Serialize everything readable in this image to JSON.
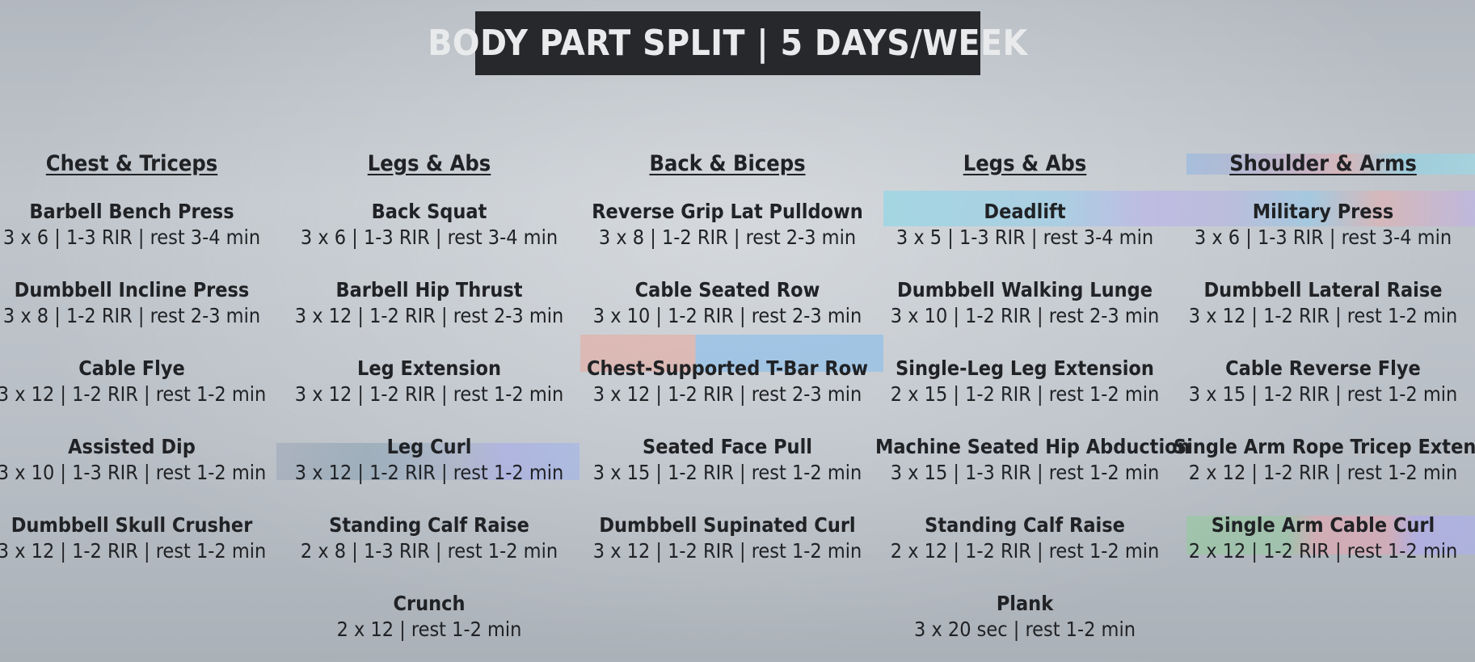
{
  "title": "BODY PART SPLIT | 5 DAYS/WEEK",
  "columns": [
    {
      "header": "Chest & Triceps",
      "exercises": [
        {
          "name": "Barbell Bench Press",
          "detail": "3 x 6 | 1-3 RIR | rest 3-4 min"
        },
        {
          "name": "Dumbbell Incline Press",
          "detail": "3 x 8 | 1-2 RIR | rest 2-3 min"
        },
        {
          "name": "Cable Flye",
          "detail": "3 x 12 | 1-2 RIR | rest 1-2 min"
        },
        {
          "name": "Assisted Dip",
          "detail": "3 x 10 | 1-3 RIR | rest 1-2 min"
        },
        {
          "name": "Dumbbell Skull Crusher",
          "detail": "3 x 12 | 1-2 RIR | rest 1-2 min"
        }
      ]
    },
    {
      "header": "Legs & Abs",
      "exercises": [
        {
          "name": "Back Squat",
          "detail": "3 x 6 | 1-3 RIR | rest 3-4 min"
        },
        {
          "name": "Barbell Hip Thrust",
          "detail": "3 x 12 | 1-2 RIR | rest 2-3 min"
        },
        {
          "name": "Leg Extension",
          "detail": "3 x 12 | 1-2 RIR | rest 1-2 min"
        },
        {
          "name": "Leg Curl",
          "detail": "3 x 12 | 1-2 RIR | rest 1-2 min"
        },
        {
          "name": "Standing Calf Raise",
          "detail": "2 x 8 | 1-3 RIR | rest 1-2 min"
        },
        {
          "name": "Crunch",
          "detail": "2 x 12 | rest 1-2 min"
        }
      ]
    },
    {
      "header": "Back & Biceps",
      "exercises": [
        {
          "name": "Reverse Grip Lat Pulldown",
          "detail": "3 x 8 | 1-2 RIR | rest 2-3 min"
        },
        {
          "name": "Cable Seated Row",
          "detail": "3 x 10 | 1-2 RIR | rest 2-3 min"
        },
        {
          "name": "Chest-Supported T-Bar Row",
          "detail": "3 x 12 | 1-2 RIR | rest 2-3 min"
        },
        {
          "name": "Seated Face Pull",
          "detail": "3 x 15 | 1-2 RIR | rest 1-2 min"
        },
        {
          "name": "Dumbbell Supinated Curl",
          "detail": "3 x 12 | 1-2 RIR | rest 1-2 min"
        }
      ]
    },
    {
      "header": "Legs & Abs",
      "exercises": [
        {
          "name": "Deadlift",
          "detail": "3 x 5 | 1-3 RIR | rest 3-4 min"
        },
        {
          "name": "Dumbbell Walking Lunge",
          "detail": "3 x 10 | 1-2 RIR | rest 2-3 min"
        },
        {
          "name": "Single-Leg Leg Extension",
          "detail": "2 x 15 | 1-2 RIR | rest 1-2 min"
        },
        {
          "name": "Machine Seated Hip Abduction",
          "detail": "3 x 15 | 1-3 RIR | rest 1-2 min"
        },
        {
          "name": "Standing Calf Raise",
          "detail": "2 x 12 | 1-2 RIR | rest 1-2 min"
        },
        {
          "name": "Plank",
          "detail": "3 x 20 sec | rest 1-2 min"
        }
      ]
    },
    {
      "header": "Shoulder & Arms",
      "exercises": [
        {
          "name": "Military Press",
          "detail": "3 x 6 | 1-3 RIR | rest 3-4 min"
        },
        {
          "name": "Dumbbell Lateral Raise",
          "detail": "3 x 12 | 1-2 RIR | rest 1-2 min"
        },
        {
          "name": "Cable Reverse Flye",
          "detail": "3 x 15 | 1-2 RIR | rest 1-2 min"
        },
        {
          "name": "Single Arm Rope Tricep Extension",
          "detail": "2 x 12 | 1-2 RIR | rest 1-2 min"
        },
        {
          "name": "Single Arm Cable Curl",
          "detail": "2 x 12 | 1-2 RIR | rest 1-2 min"
        }
      ]
    }
  ]
}
